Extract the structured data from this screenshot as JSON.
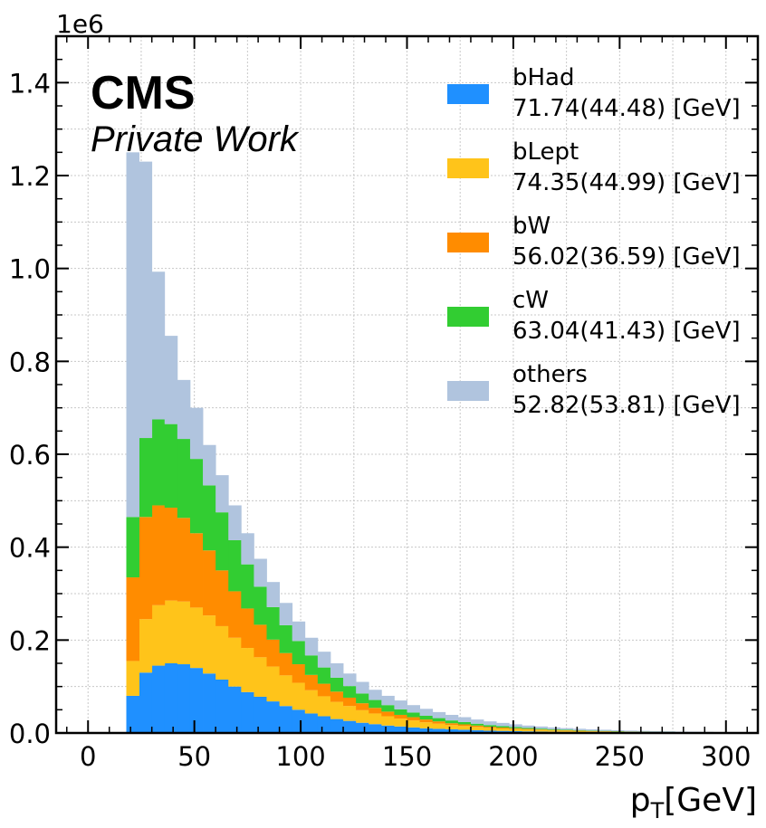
{
  "chart_data": {
    "type": "bar",
    "stacked": true,
    "histogram": true,
    "xlabel_main": "p",
    "xlabel_sub": "T",
    "xlabel_unit": "[GeV]",
    "ylabel": "",
    "y_multiplier": "1e6",
    "xlim": [
      -15,
      315
    ],
    "ylim": [
      0,
      1.5
    ],
    "xticks": [
      0,
      50,
      100,
      150,
      200,
      250,
      300
    ],
    "yticks": [
      0.0,
      0.2,
      0.4,
      0.6,
      0.8,
      1.0,
      1.2,
      1.4
    ],
    "ytick_labels": [
      "0.0",
      "0.2",
      "0.4",
      "0.6",
      "0.8",
      "1.0",
      "1.2",
      "1.4"
    ],
    "grid": true,
    "legend_position": "top-right",
    "experiment_label": "CMS",
    "status_label": "Private Work",
    "bin_edges": [
      18,
      24,
      30,
      36,
      42,
      48,
      54,
      60,
      66,
      72,
      78,
      84,
      90,
      96,
      102,
      108,
      114,
      120,
      126,
      132,
      138,
      144,
      150,
      156,
      162,
      168,
      174,
      180,
      186,
      192,
      198,
      204,
      210,
      216,
      222,
      228,
      234,
      240,
      246,
      252,
      258,
      264,
      270,
      276,
      282,
      288,
      294,
      300
    ],
    "series": [
      {
        "name": "bHad",
        "legend_stat": "71.74(44.48) [GeV]",
        "color": "#1f90ff",
        "values": [
          0.08,
          0.13,
          0.145,
          0.15,
          0.148,
          0.14,
          0.128,
          0.115,
          0.1,
          0.088,
          0.078,
          0.068,
          0.058,
          0.05,
          0.042,
          0.036,
          0.03,
          0.026,
          0.022,
          0.019,
          0.016,
          0.014,
          0.012,
          0.01,
          0.009,
          0.008,
          0.007,
          0.006,
          0.005,
          0.0045,
          0.004,
          0.0035,
          0.003,
          0.0026,
          0.0023,
          0.002,
          0.0017,
          0.0015,
          0.0013,
          0.0011,
          0.001,
          0.0009,
          0.0008,
          0.0007,
          0.0006,
          0.0005,
          0.0004
        ]
      },
      {
        "name": "bLept",
        "legend_stat": "74.35(44.99) [GeV]",
        "color": "#ffc41a",
        "values": [
          0.075,
          0.115,
          0.13,
          0.135,
          0.135,
          0.13,
          0.125,
          0.115,
          0.105,
          0.095,
          0.085,
          0.075,
          0.066,
          0.058,
          0.05,
          0.043,
          0.037,
          0.032,
          0.027,
          0.023,
          0.02,
          0.017,
          0.015,
          0.013,
          0.011,
          0.009,
          0.008,
          0.007,
          0.006,
          0.0052,
          0.0045,
          0.0039,
          0.0034,
          0.0029,
          0.0025,
          0.0022,
          0.0019,
          0.0016,
          0.0014,
          0.0012,
          0.0011,
          0.001,
          0.0009,
          0.0008,
          0.0007,
          0.0006,
          0.0005
        ]
      },
      {
        "name": "bW",
        "legend_stat": "56.02(36.59) [GeV]",
        "color": "#ff8c00",
        "values": [
          0.18,
          0.22,
          0.215,
          0.2,
          0.18,
          0.16,
          0.14,
          0.12,
          0.1,
          0.085,
          0.07,
          0.058,
          0.048,
          0.04,
          0.033,
          0.027,
          0.022,
          0.018,
          0.015,
          0.012,
          0.01,
          0.008,
          0.007,
          0.006,
          0.005,
          0.004,
          0.0035,
          0.003,
          0.0025,
          0.002,
          0.0017,
          0.0014,
          0.0012,
          0.001,
          0.0009,
          0.0008,
          0.0007,
          0.0006,
          0.0005,
          0.0004,
          0.0004,
          0.0003,
          0.0003,
          0.0002,
          0.0002,
          0.0002,
          0.0001
        ]
      },
      {
        "name": "cW",
        "legend_stat": "63.04(41.43) [GeV]",
        "color": "#32cd32",
        "values": [
          0.13,
          0.17,
          0.185,
          0.18,
          0.17,
          0.16,
          0.14,
          0.125,
          0.11,
          0.095,
          0.082,
          0.07,
          0.06,
          0.05,
          0.042,
          0.035,
          0.03,
          0.025,
          0.021,
          0.017,
          0.014,
          0.012,
          0.01,
          0.008,
          0.007,
          0.006,
          0.005,
          0.004,
          0.0035,
          0.003,
          0.0025,
          0.002,
          0.0018,
          0.0015,
          0.0013,
          0.0011,
          0.001,
          0.0008,
          0.0007,
          0.0006,
          0.0005,
          0.0004,
          0.0004,
          0.0003,
          0.0003,
          0.0002,
          0.0002
        ]
      },
      {
        "name": "others",
        "legend_stat": "52.82(53.81) [GeV]",
        "color": "#b0c4de",
        "values": [
          0.785,
          0.595,
          0.318,
          0.19,
          0.127,
          0.11,
          0.087,
          0.08,
          0.075,
          0.067,
          0.06,
          0.054,
          0.048,
          0.042,
          0.038,
          0.034,
          0.031,
          0.027,
          0.025,
          0.022,
          0.02,
          0.019,
          0.016,
          0.015,
          0.013,
          0.012,
          0.0105,
          0.009,
          0.008,
          0.007,
          0.006,
          0.0052,
          0.0046,
          0.004,
          0.0035,
          0.003,
          0.0027,
          0.0025,
          0.0021,
          0.0018,
          0.0016,
          0.0014,
          0.0012,
          0.001,
          0.0009,
          0.0008,
          0.0007
        ]
      }
    ]
  }
}
